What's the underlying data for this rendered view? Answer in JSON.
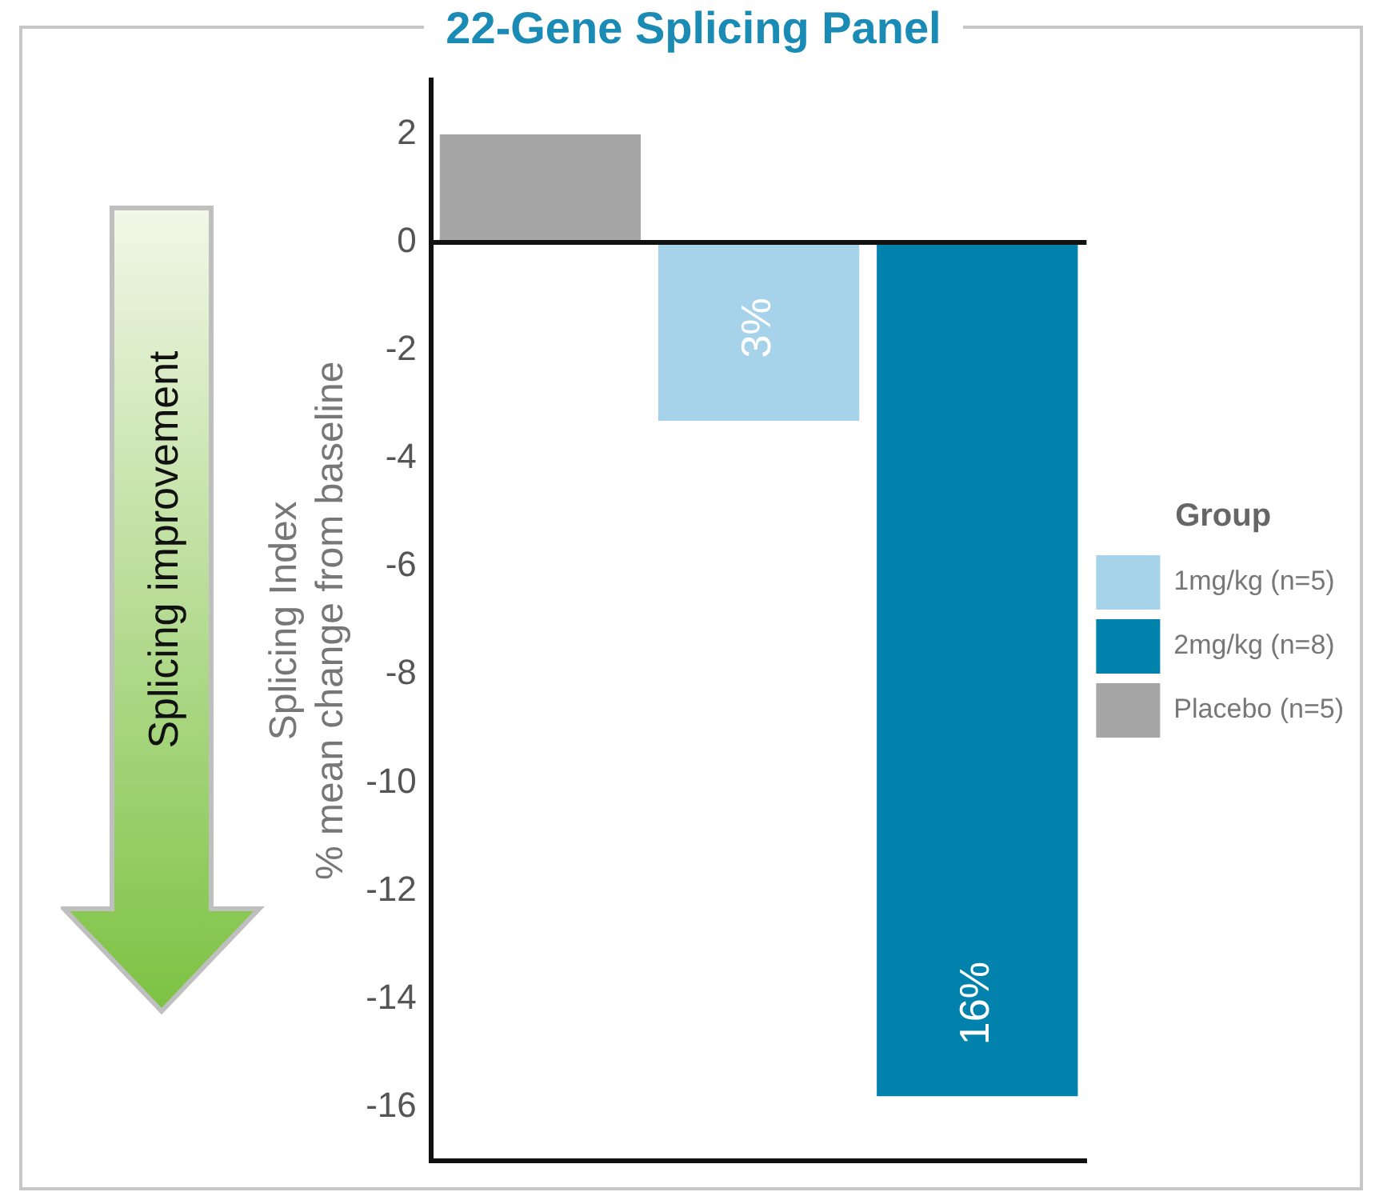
{
  "chart_data": {
    "type": "bar",
    "title": "22-Gene Splicing Panel",
    "ylabel": "Splicing Index\n% mean change from baseline",
    "legend_title": "Group",
    "categories": [
      null,
      null,
      null
    ],
    "series": [
      {
        "name": "1mg/kg (n=5)",
        "color": "#a6d2ea",
        "values": [
          null,
          -3.3,
          null
        ]
      },
      {
        "name": "2mg/kg (n=8)",
        "color": "#0082ad",
        "values": [
          null,
          null,
          -15.8
        ]
      },
      {
        "name": "Placebo (n=5)",
        "color": "#a6a6a6",
        "values": [
          2,
          null,
          null
        ]
      }
    ],
    "ylim": [
      -17,
      3
    ],
    "yticks": [
      -16,
      -14,
      -12,
      -10,
      -8,
      -6,
      -4,
      -2,
      0,
      2
    ],
    "ref_lines": [
      {
        "axis": "y",
        "value": 0,
        "color": "#111111"
      }
    ],
    "annotations": [
      "Splicing improvement",
      "3%",
      "16%"
    ],
    "grid": false,
    "legend": "right"
  }
}
